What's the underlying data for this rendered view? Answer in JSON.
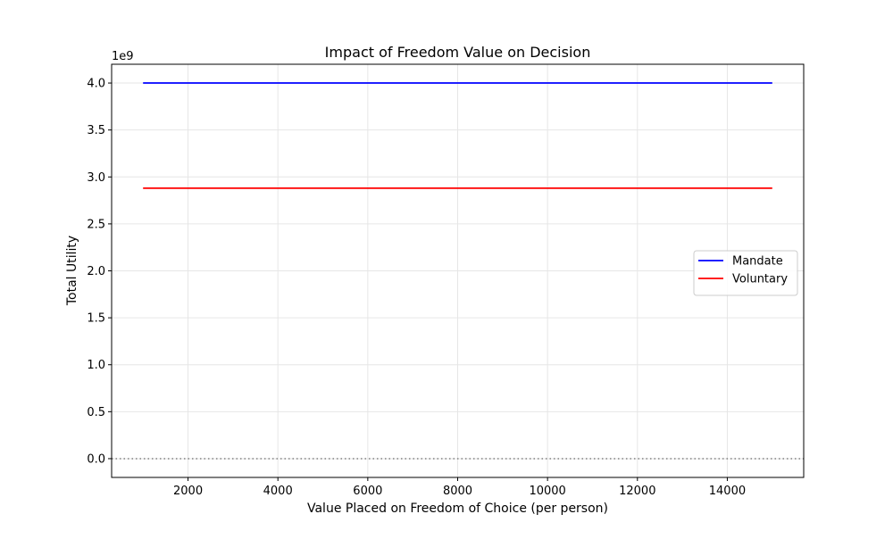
{
  "chart_data": {
    "type": "line",
    "title": "Impact of Freedom Value on Decision",
    "xlabel": "Value Placed on Freedom of Choice (per person)",
    "ylabel": "Total Utility",
    "y_offset_label": "1e9",
    "y_scale_factor": 1000000000,
    "xlim": [
      300,
      15700
    ],
    "ylim": [
      -200000000,
      4200000000
    ],
    "x_ticks": [
      2000,
      4000,
      6000,
      8000,
      10000,
      12000,
      14000
    ],
    "x_tick_labels": [
      "2000",
      "4000",
      "6000",
      "8000",
      "10000",
      "12000",
      "14000"
    ],
    "y_ticks": [
      0,
      500000000,
      1000000000,
      1500000000,
      2000000000,
      2500000000,
      3000000000,
      3500000000,
      4000000000
    ],
    "y_tick_labels": [
      "0.0",
      "0.5",
      "1.0",
      "1.5",
      "2.0",
      "2.5",
      "3.0",
      "3.5",
      "4.0"
    ],
    "grid": true,
    "reference_line": {
      "y": 0,
      "style": "dotted",
      "color": "#808080"
    },
    "legend_position": "center-right",
    "series": [
      {
        "name": "Mandate",
        "color": "#0000ff",
        "x": [
          1000,
          15000
        ],
        "y": [
          4000000000,
          4000000000
        ]
      },
      {
        "name": "Voluntary",
        "color": "#ff0000",
        "x": [
          1000,
          15000
        ],
        "y": [
          2880000000,
          2880000000
        ]
      }
    ]
  }
}
